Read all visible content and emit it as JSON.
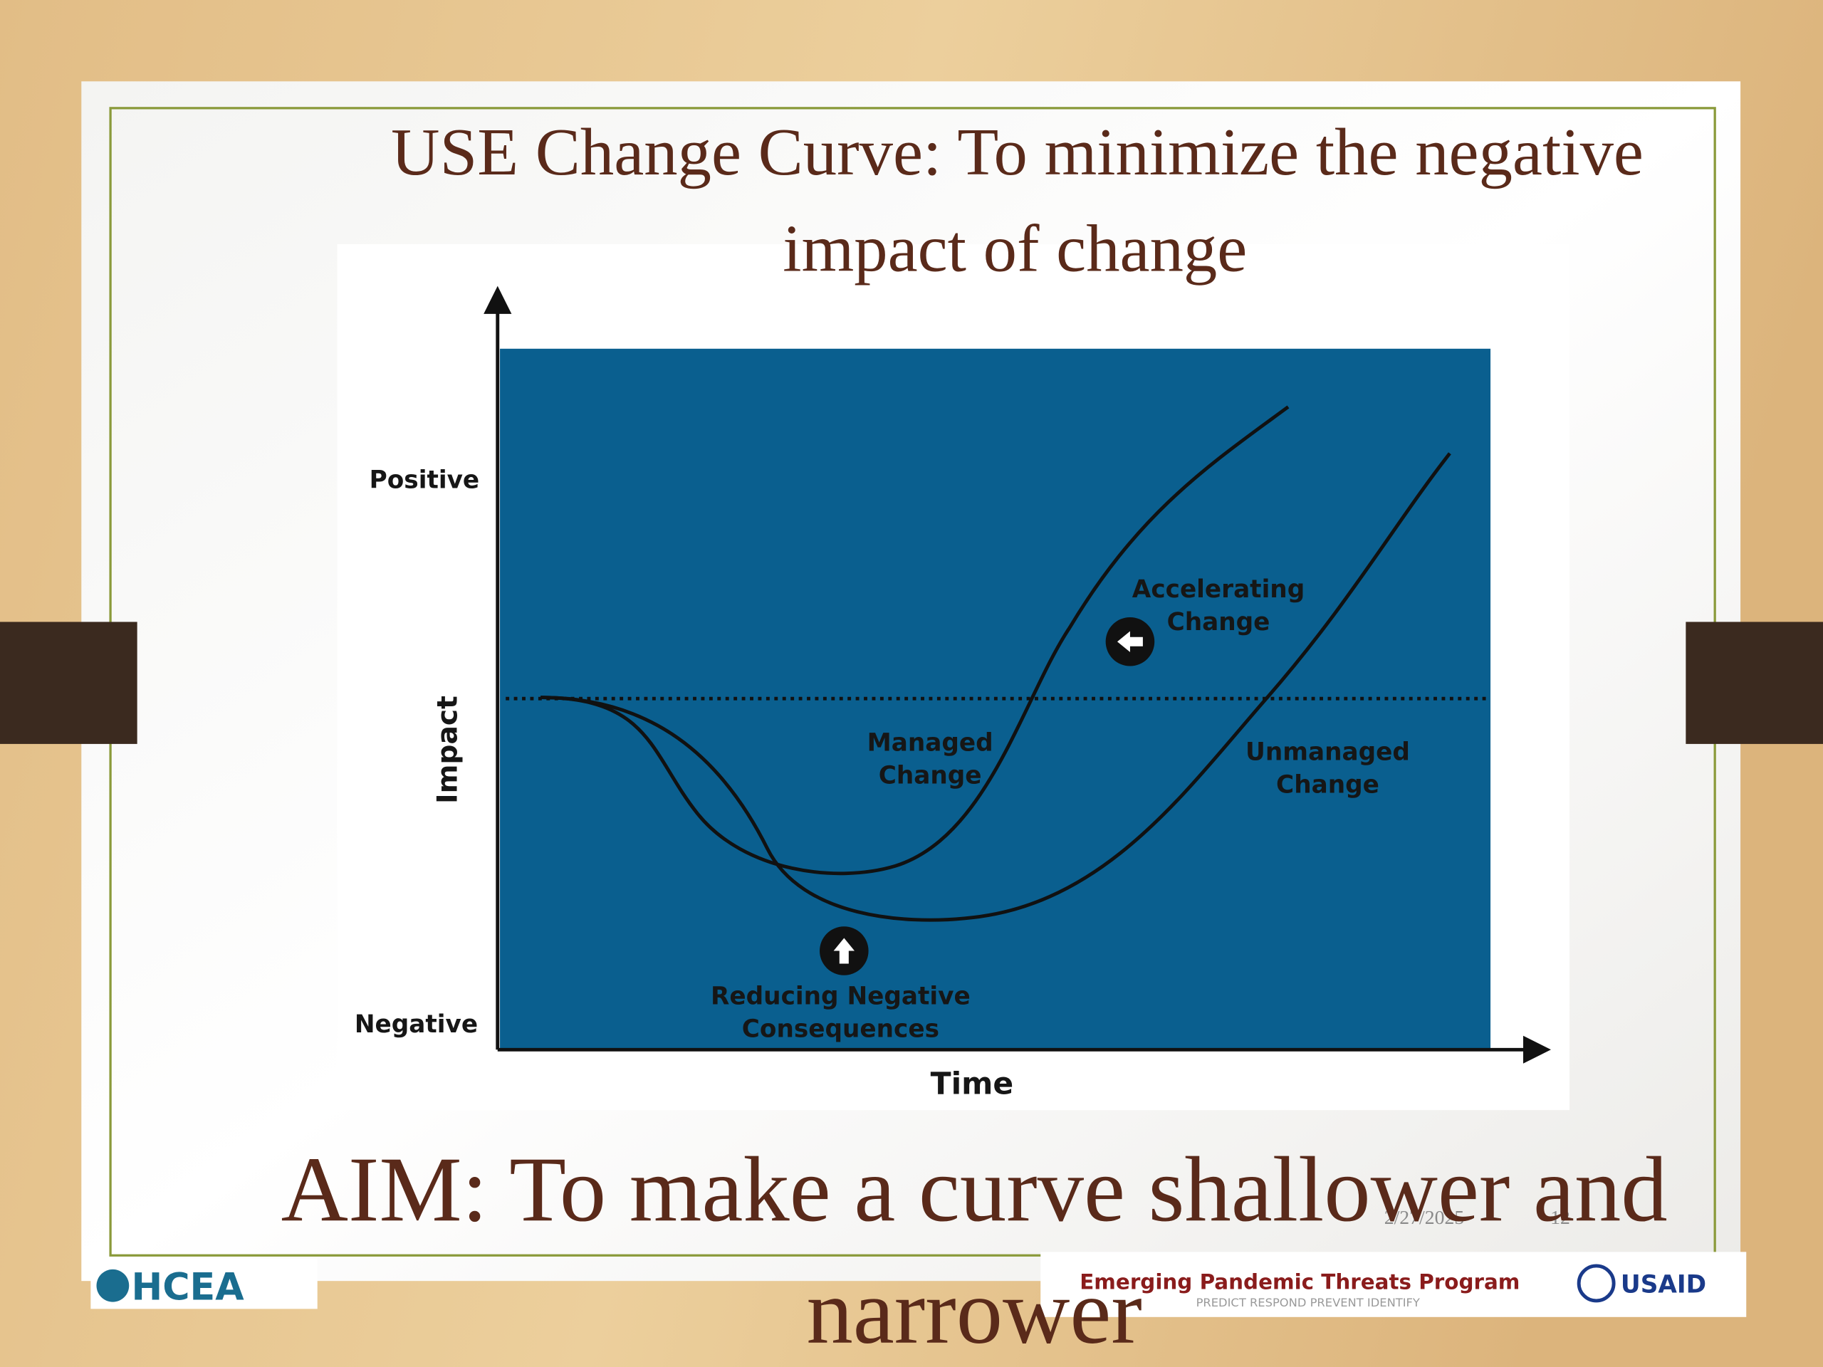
{
  "slide": {
    "title": [
      "USE Change  Curve: To minimize the negative",
      "impact of change"
    ],
    "diagram": {
      "y_axis_label": "Impact",
      "x_axis_label": "Time",
      "y_top_label": "Positive",
      "y_bottom_label": "Negative",
      "labels": {
        "accelerating": [
          "Accelerating",
          "Change"
        ],
        "managed": [
          "Managed",
          "Change"
        ],
        "unmanaged": [
          "Unmanaged",
          "Change"
        ],
        "reducing": [
          "Reducing Negative",
          "Consequences"
        ]
      }
    },
    "aim": [
      "AIM: To make a curve shallower and",
      "narrower"
    ],
    "footer": {
      "date": "2/27/2025",
      "page": "12"
    },
    "logos": {
      "ohcea": "HCEA",
      "program": "Emerging Pandemic Threats Program",
      "tagline": "PREDICT RESPOND PREVENT IDENTIFY",
      "usaid": "USAID"
    }
  }
}
